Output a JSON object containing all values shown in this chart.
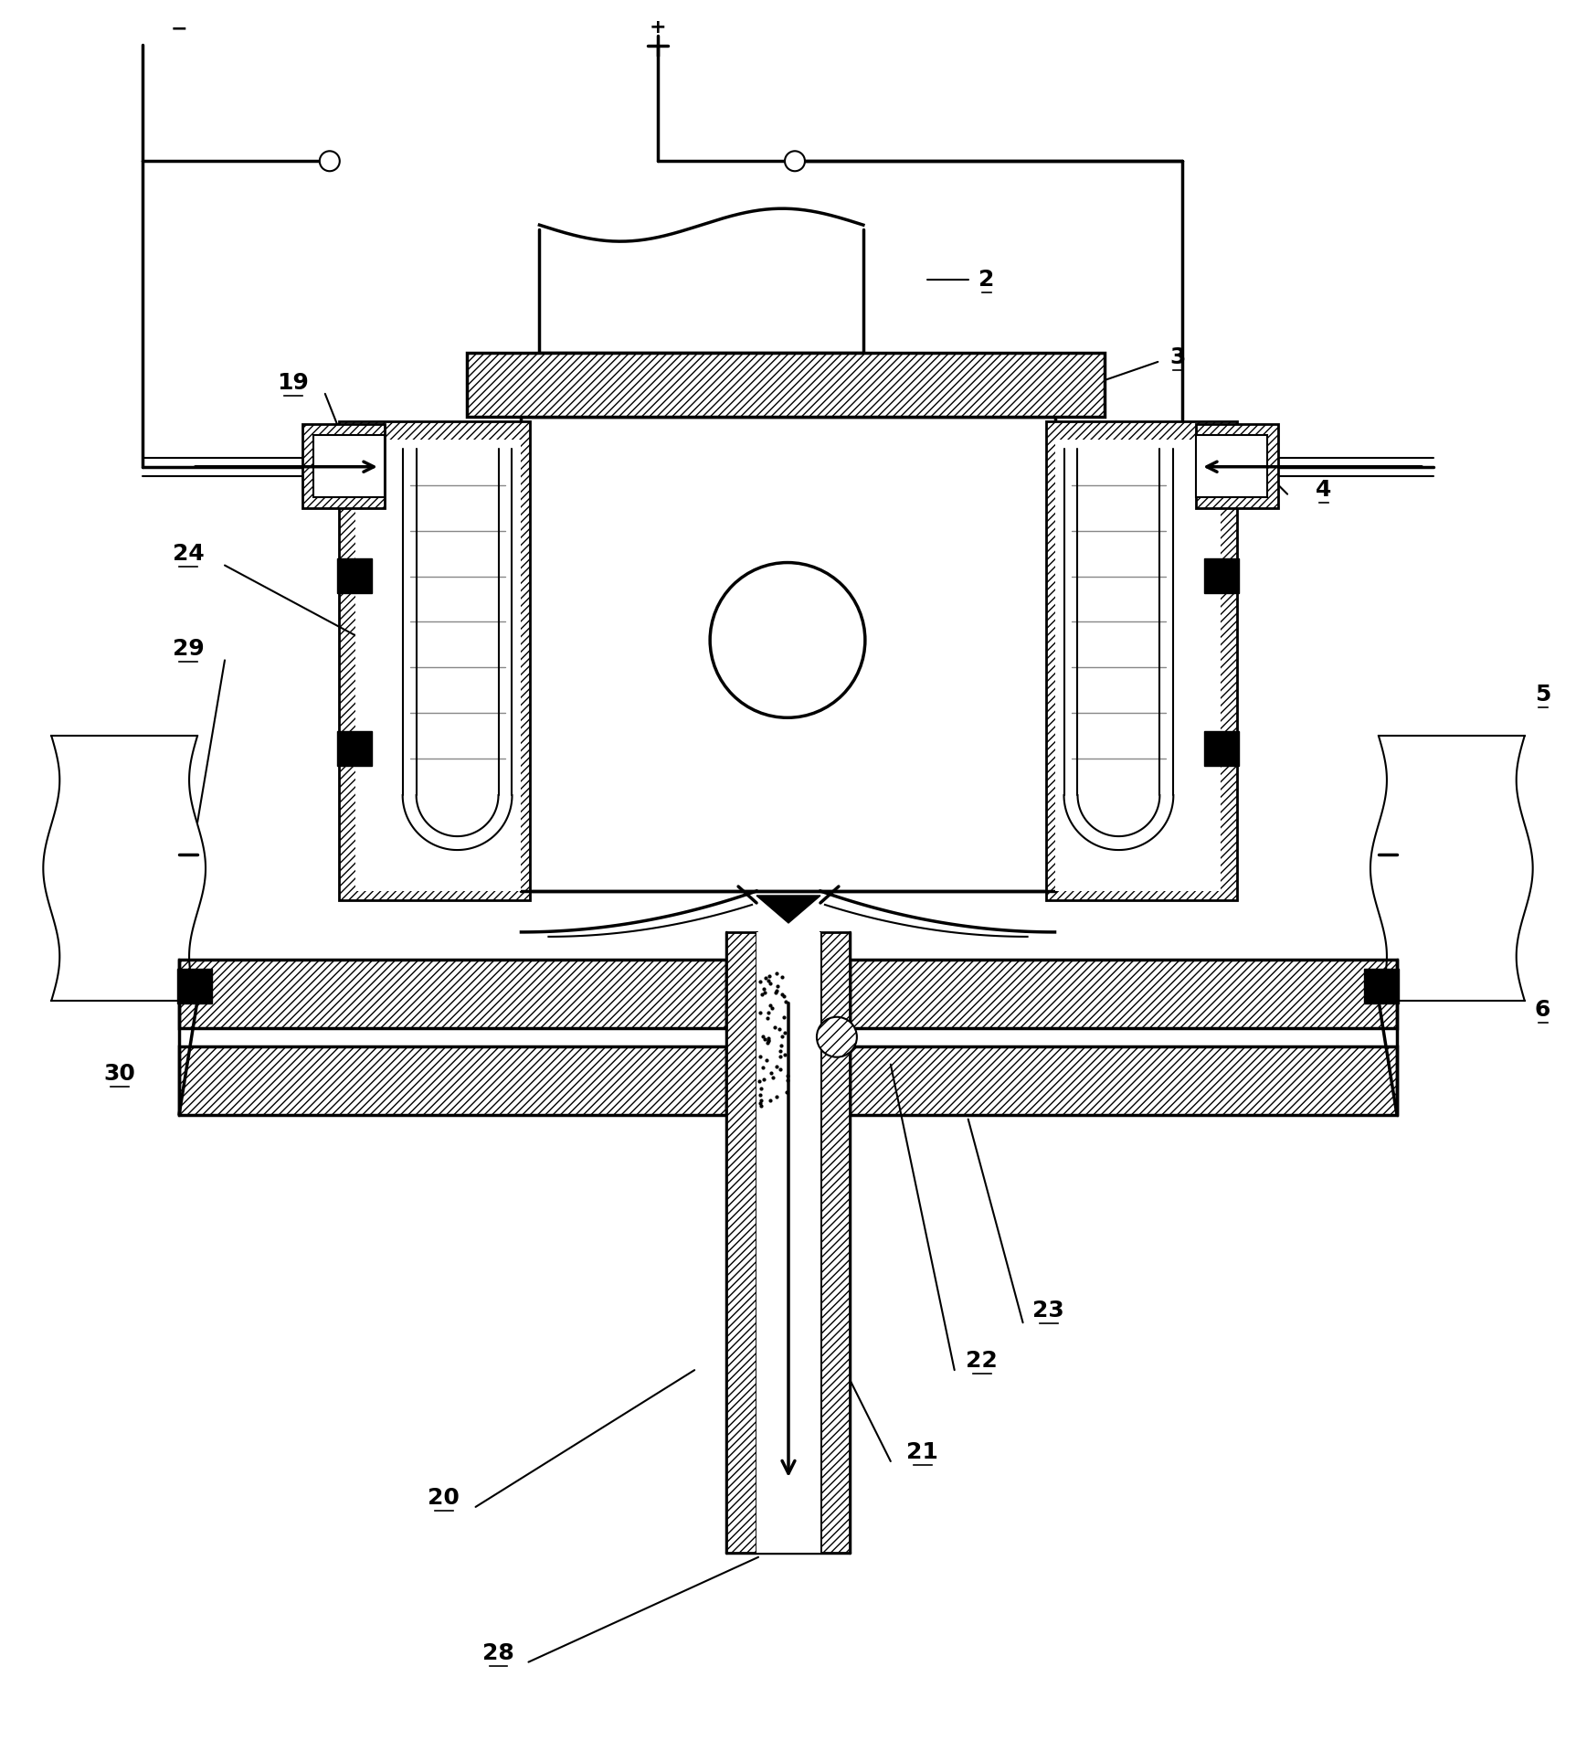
{
  "fig_width": 17.25,
  "fig_height": 19.28,
  "dpi": 100,
  "bg_color": "#ffffff",
  "lc": "#000000"
}
